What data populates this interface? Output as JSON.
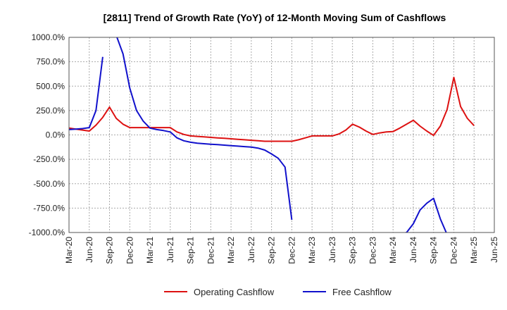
{
  "chart_data": {
    "type": "line",
    "title": "[2811]  Trend of Growth Rate (YoY) of 12-Month Moving Sum of Cashflows",
    "xlabel": "",
    "ylabel": "",
    "ylim": [
      -1000,
      1000
    ],
    "y_ticks": [
      1000,
      750,
      500,
      250,
      0,
      -250,
      -500,
      -750,
      -1000
    ],
    "y_tick_labels": [
      "1000.0%",
      "750.0%",
      "500.0%",
      "250.0%",
      "0.0%",
      "-250.0%",
      "-500.0%",
      "-750.0%",
      "-1000.0%"
    ],
    "x_tick_labels": [
      "Mar-20",
      "Jun-20",
      "Sep-20",
      "Dec-20",
      "Mar-21",
      "Jun-21",
      "Sep-21",
      "Dec-21",
      "Mar-22",
      "Jun-22",
      "Sep-22",
      "Dec-22",
      "Mar-23",
      "Jun-23",
      "Sep-23",
      "Dec-23",
      "Mar-24",
      "Jun-24",
      "Sep-24",
      "Dec-24",
      "Mar-25",
      "Jun-25"
    ],
    "x_range": [
      "2020-03",
      "2025-06"
    ],
    "grid": true,
    "legend_position": "bottom",
    "series": [
      {
        "name": "Operating Cashflow",
        "color": "#dd1111",
        "points": [
          [
            "2020-03",
            70
          ],
          [
            "2020-04",
            60
          ],
          [
            "2020-05",
            50
          ],
          [
            "2020-06",
            40
          ],
          [
            "2020-07",
            100
          ],
          [
            "2020-08",
            180
          ],
          [
            "2020-09",
            285
          ],
          [
            "2020-10",
            170
          ],
          [
            "2020-11",
            110
          ],
          [
            "2020-12",
            75
          ],
          [
            "2021-01",
            75
          ],
          [
            "2021-02",
            75
          ],
          [
            "2021-03",
            75
          ],
          [
            "2021-04",
            75
          ],
          [
            "2021-05",
            75
          ],
          [
            "2021-06",
            75
          ],
          [
            "2021-07",
            30
          ],
          [
            "2021-08",
            5
          ],
          [
            "2021-09",
            -10
          ],
          [
            "2021-10",
            -15
          ],
          [
            "2021-11",
            -20
          ],
          [
            "2021-12",
            -25
          ],
          [
            "2022-01",
            -30
          ],
          [
            "2022-02",
            -35
          ],
          [
            "2022-03",
            -40
          ],
          [
            "2022-04",
            -45
          ],
          [
            "2022-05",
            -50
          ],
          [
            "2022-06",
            -55
          ],
          [
            "2022-07",
            -60
          ],
          [
            "2022-08",
            -65
          ],
          [
            "2022-09",
            -65
          ],
          [
            "2022-10",
            -65
          ],
          [
            "2022-11",
            -65
          ],
          [
            "2022-12",
            -65
          ],
          [
            "2023-01",
            -50
          ],
          [
            "2023-02",
            -30
          ],
          [
            "2023-03",
            -10
          ],
          [
            "2023-04",
            -10
          ],
          [
            "2023-05",
            -10
          ],
          [
            "2023-06",
            -10
          ],
          [
            "2023-07",
            10
          ],
          [
            "2023-08",
            50
          ],
          [
            "2023-09",
            110
          ],
          [
            "2023-10",
            80
          ],
          [
            "2023-11",
            40
          ],
          [
            "2023-12",
            5
          ],
          [
            "2024-01",
            20
          ],
          [
            "2024-02",
            30
          ],
          [
            "2024-03",
            35
          ],
          [
            "2024-04",
            70
          ],
          [
            "2024-05",
            110
          ],
          [
            "2024-06",
            150
          ],
          [
            "2024-07",
            90
          ],
          [
            "2024-08",
            40
          ],
          [
            "2024-09",
            -5
          ],
          [
            "2024-10",
            90
          ],
          [
            "2024-11",
            260
          ],
          [
            "2024-12",
            590
          ],
          [
            "2025-01",
            290
          ],
          [
            "2025-02",
            170
          ],
          [
            "2025-03",
            95
          ]
        ]
      },
      {
        "name": "Free Cashflow",
        "color": "#1111cc",
        "points": [
          [
            "2020-03",
            55
          ],
          [
            "2020-04",
            60
          ],
          [
            "2020-05",
            65
          ],
          [
            "2020-06",
            75
          ],
          [
            "2020-07",
            250
          ],
          [
            "2020-08",
            800
          ],
          null,
          [
            "2020-10",
            1020
          ],
          [
            "2020-11",
            830
          ],
          [
            "2020-12",
            480
          ],
          [
            "2021-01",
            250
          ],
          [
            "2021-02",
            140
          ],
          [
            "2021-03",
            70
          ],
          [
            "2021-04",
            55
          ],
          [
            "2021-05",
            45
          ],
          [
            "2021-06",
            30
          ],
          [
            "2021-07",
            -30
          ],
          [
            "2021-08",
            -60
          ],
          [
            "2021-09",
            -75
          ],
          [
            "2021-10",
            -85
          ],
          [
            "2021-11",
            -90
          ],
          [
            "2021-12",
            -95
          ],
          [
            "2022-01",
            -100
          ],
          [
            "2022-02",
            -105
          ],
          [
            "2022-03",
            -110
          ],
          [
            "2022-04",
            -115
          ],
          [
            "2022-05",
            -120
          ],
          [
            "2022-06",
            -125
          ],
          [
            "2022-07",
            -135
          ],
          [
            "2022-08",
            -155
          ],
          [
            "2022-09",
            -195
          ],
          [
            "2022-10",
            -240
          ],
          [
            "2022-11",
            -330
          ],
          [
            "2022-12",
            -870
          ],
          null,
          [
            "2024-04",
            -1020
          ],
          [
            "2024-05",
            -1000
          ],
          [
            "2024-06",
            -910
          ],
          [
            "2024-07",
            -770
          ],
          [
            "2024-08",
            -700
          ],
          [
            "2024-09",
            -650
          ],
          [
            "2024-10",
            -860
          ],
          [
            "2024-11",
            -1020
          ]
        ]
      }
    ]
  }
}
